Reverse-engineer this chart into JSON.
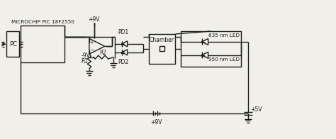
{
  "bg_color": "#f0efea",
  "line_color": "#1a1a1a",
  "labels": {
    "microchip": "MICROCHIP PIC 18F2550",
    "pc": "PC",
    "plus9v_top": "+9V",
    "minus9v": "-9V",
    "r1": "R1",
    "r2": "R2",
    "pd1": "PD1",
    "pd2": "PD2",
    "chamber": "Chamber",
    "led635": "635 nm LED",
    "led950": "950 nm LED",
    "battery": "+9V",
    "plus5v": "+5V"
  }
}
